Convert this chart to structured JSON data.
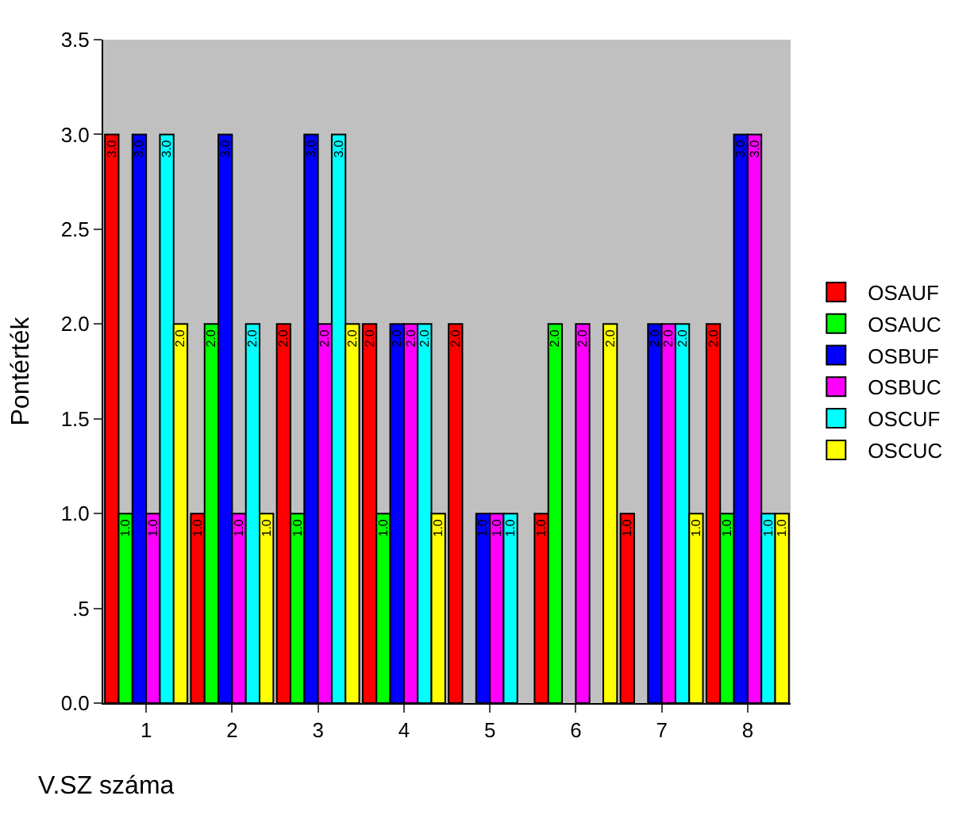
{
  "chart_data": {
    "type": "bar",
    "xlabel": "V.SZ száma",
    "ylabel": "Pontérték",
    "categories": [
      "1",
      "2",
      "3",
      "4",
      "5",
      "6",
      "7",
      "8"
    ],
    "series": [
      {
        "name": "OSAUF",
        "color": "#ff0000",
        "values": [
          3,
          1,
          2,
          2,
          2,
          1,
          1,
          2
        ],
        "value_labels": [
          "3.0",
          "1.0",
          "2.0",
          "2.0",
          "2.0",
          "1.0",
          "1.0",
          "2.0"
        ]
      },
      {
        "name": "OSAUC",
        "color": "#00ff00",
        "values": [
          1,
          2,
          1,
          1,
          null,
          2,
          null,
          1
        ],
        "value_labels": [
          "1.0",
          "2.0",
          "1.0",
          "1.0",
          null,
          "2.0",
          null,
          "1.0"
        ]
      },
      {
        "name": "OSBUF",
        "color": "#0000ff",
        "values": [
          3,
          3,
          3,
          2,
          1,
          null,
          2,
          3
        ],
        "value_labels": [
          "3.0",
          "3.0",
          "3.0",
          "2.0",
          "1.0",
          null,
          "2.0",
          "3.0"
        ]
      },
      {
        "name": "OSBUC",
        "color": "#ff00ff",
        "values": [
          1,
          1,
          2,
          2,
          1,
          2,
          2,
          3
        ],
        "value_labels": [
          "1.0",
          "1.0",
          "2.0",
          "2.0",
          "1.0",
          "2.0",
          "2.0",
          "3.0"
        ]
      },
      {
        "name": "OSCUF",
        "color": "#00ffff",
        "values": [
          3,
          2,
          3,
          2,
          1,
          null,
          2,
          1
        ],
        "value_labels": [
          "3.0",
          "2.0",
          "3.0",
          "2.0",
          "1.0",
          null,
          "2.0",
          "1.0"
        ]
      },
      {
        "name": "OSCUC",
        "color": "#ffff00",
        "values": [
          2,
          1,
          2,
          1,
          null,
          2,
          1,
          1
        ],
        "value_labels": [
          "2.0",
          "1.0",
          "2.0",
          "1.0",
          null,
          "2.0",
          "1.0",
          "1.0"
        ]
      }
    ],
    "ylim": [
      0,
      3.5
    ],
    "yticks": [
      {
        "value": 0,
        "label": "0.0"
      },
      {
        "value": 0.5,
        "label": ".5"
      },
      {
        "value": 1,
        "label": "1.0"
      },
      {
        "value": 1.5,
        "label": "1.5"
      },
      {
        "value": 2,
        "label": "2.0"
      },
      {
        "value": 2.5,
        "label": "2.5"
      },
      {
        "value": 3,
        "label": "3.0"
      },
      {
        "value": 3.5,
        "label": "3.5"
      }
    ],
    "grid": false,
    "legend": "right"
  }
}
